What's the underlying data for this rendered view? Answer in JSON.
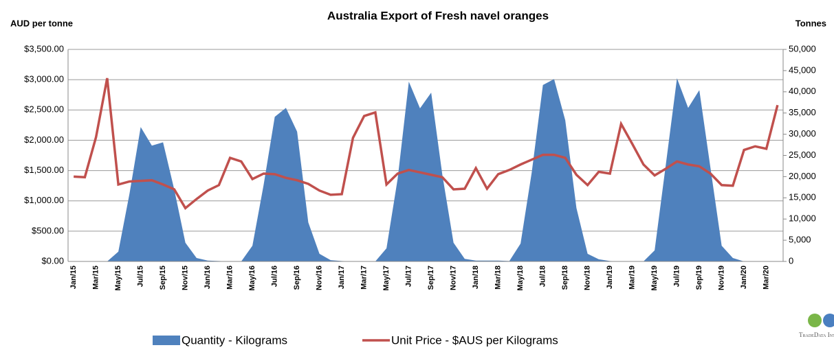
{
  "chart_data": {
    "type": "area_line",
    "title": "Australia Export of Fresh navel oranges",
    "y_label": "AUD per tonne",
    "y2_label": "Tonnes",
    "categories": [
      "Jan/15",
      null,
      "Mar/15",
      null,
      "May/15",
      null,
      "Jul/15",
      null,
      "Sep/15",
      null,
      "Nov/15",
      null,
      "Jan/16",
      null,
      "Mar/16",
      null,
      "May/16",
      null,
      "Jul/16",
      null,
      "Sep/16",
      null,
      "Nov/16",
      null,
      "Jan/17",
      null,
      "Mar/17",
      null,
      "May/17",
      null,
      "Jul/17",
      null,
      "Sep/17",
      null,
      "Nov/17",
      null,
      "Jan/18",
      null,
      "Mar/18",
      null,
      "May/18",
      null,
      "Jul/18",
      null,
      "Sep/18",
      null,
      "Nov/18",
      null,
      "Jan/19",
      null,
      "Mar/19",
      null,
      "May/19",
      null,
      "Jul/19",
      null,
      "Sep/19",
      null,
      "Nov/19",
      null,
      "Jan/20",
      null,
      "Mar/20",
      null
    ],
    "series": [
      {
        "name": "Quantity - Kilograms",
        "color": "#4f81bd",
        "axis": "y2",
        "kind": "area",
        "values": [
          0,
          0,
          0,
          0,
          2300,
          16000,
          31700,
          27300,
          28100,
          17000,
          4400,
          800,
          200,
          100,
          0,
          0,
          3700,
          18000,
          34100,
          36200,
          30600,
          9200,
          1800,
          300,
          100,
          0,
          0,
          0,
          3100,
          19500,
          42400,
          36100,
          39800,
          20400,
          4400,
          600,
          200,
          200,
          200,
          100,
          4200,
          21000,
          41600,
          43000,
          33300,
          12600,
          1800,
          500,
          100,
          0,
          0,
          0,
          2600,
          22800,
          43200,
          36200,
          40400,
          22000,
          3700,
          800,
          0,
          0,
          0,
          0
        ]
      },
      {
        "name": "Unit Price - $AUS per Kilograms",
        "color": "#c0504d",
        "axis": "y",
        "kind": "line",
        "values": [
          1400,
          1390,
          2050,
          3025,
          1270,
          1320,
          1330,
          1340,
          1270,
          1190,
          880,
          1030,
          1170,
          1260,
          1710,
          1650,
          1360,
          1450,
          1440,
          1380,
          1340,
          1280,
          1170,
          1100,
          1110,
          2040,
          2400,
          2460,
          1270,
          1450,
          1510,
          1470,
          1430,
          1390,
          1190,
          1200,
          1540,
          1200,
          1440,
          1510,
          1600,
          1680,
          1760,
          1760,
          1710,
          1430,
          1260,
          1480,
          1450,
          2270,
          1940,
          1600,
          1420,
          1530,
          1650,
          1600,
          1570,
          1450,
          1260,
          1250,
          1840,
          1900,
          1860,
          2580
        ]
      }
    ],
    "ylim": [
      0,
      3500
    ],
    "yticks": [
      {
        "value": 0,
        "label": "$0.00"
      },
      {
        "value": 500,
        "label": "$500.00"
      },
      {
        "value": 1000,
        "label": "$1,000.00"
      },
      {
        "value": 1500,
        "label": "$1,500.00"
      },
      {
        "value": 2000,
        "label": "$2,000.00"
      },
      {
        "value": 2500,
        "label": "$2,500.00"
      },
      {
        "value": 3000,
        "label": "$3,000.00"
      },
      {
        "value": 3500,
        "label": "$3,500.00"
      }
    ],
    "y2lim": [
      0,
      50000
    ],
    "y2ticks": [
      0,
      {
        "value": 5000,
        "label": "5,000"
      },
      {
        "value": 10000,
        "label": "10,000"
      },
      {
        "value": 15000,
        "label": "15,000"
      },
      {
        "value": 20000,
        "label": "20,000"
      },
      {
        "value": 25000,
        "label": "25,000"
      },
      {
        "value": 30000,
        "label": "30,000"
      },
      {
        "value": 35000,
        "label": "35,000"
      },
      {
        "value": 40000,
        "label": "40,000"
      },
      {
        "value": 45000,
        "label": "45,000"
      },
      {
        "value": 50000,
        "label": "50,000"
      }
    ],
    "grid": true,
    "legend": "bottom"
  },
  "watermark": "TradeData International"
}
